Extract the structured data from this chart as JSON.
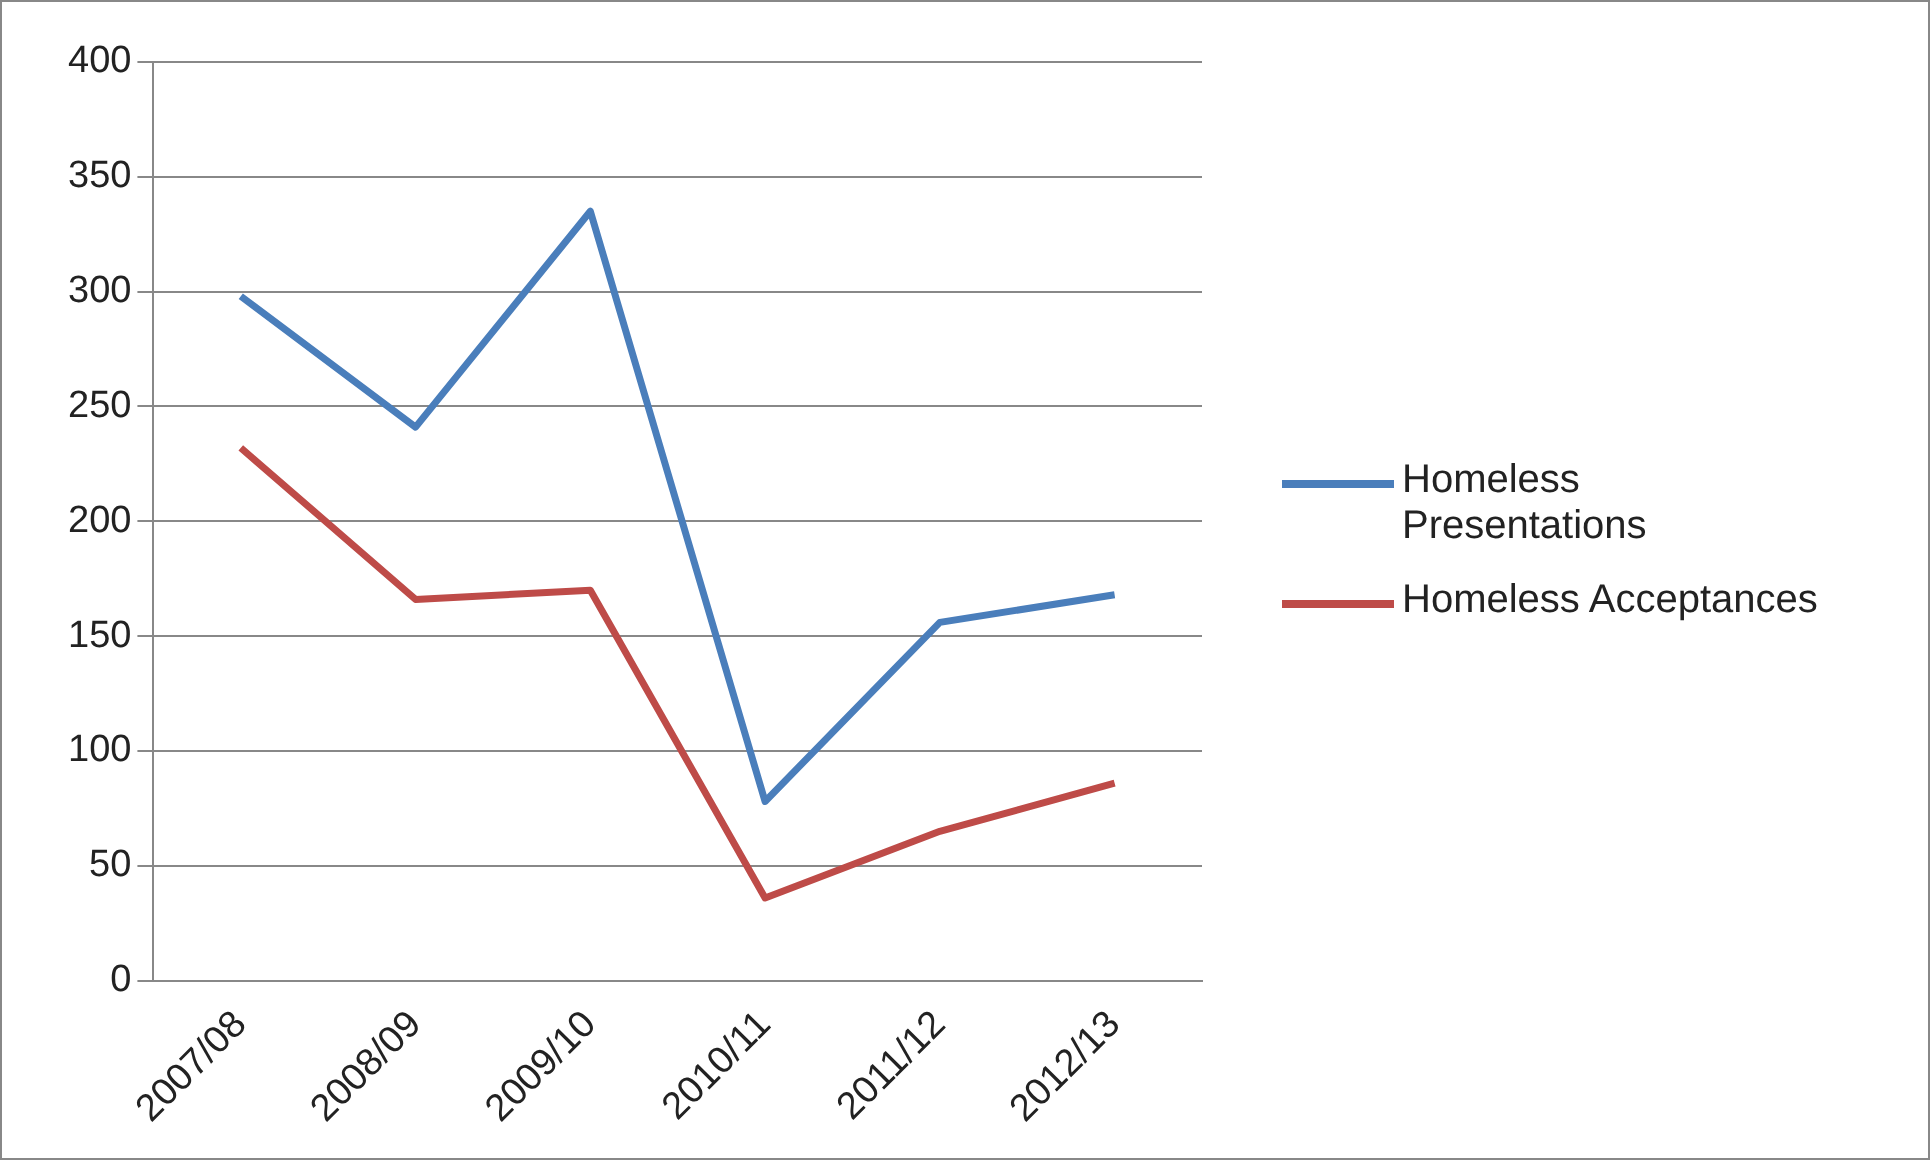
{
  "chart_data": {
    "type": "line",
    "categories": [
      "2007/08",
      "2008/09",
      "2009/10",
      "2010/11",
      "2011/12",
      "2012/13"
    ],
    "series": [
      {
        "name": "Homeless Presentations",
        "color": "#4a7ebb",
        "values": [
          298,
          241,
          335,
          78,
          156,
          168
        ]
      },
      {
        "name": "Homeless Acceptances",
        "color": "#be4b48",
        "values": [
          232,
          166,
          170,
          36,
          65,
          86
        ]
      }
    ],
    "ylim": [
      0,
      400
    ],
    "yticks": [
      0,
      50,
      100,
      150,
      200,
      250,
      300,
      350,
      400
    ],
    "grid": "y",
    "legend": "right",
    "marker": "none",
    "line_style": "solid"
  }
}
